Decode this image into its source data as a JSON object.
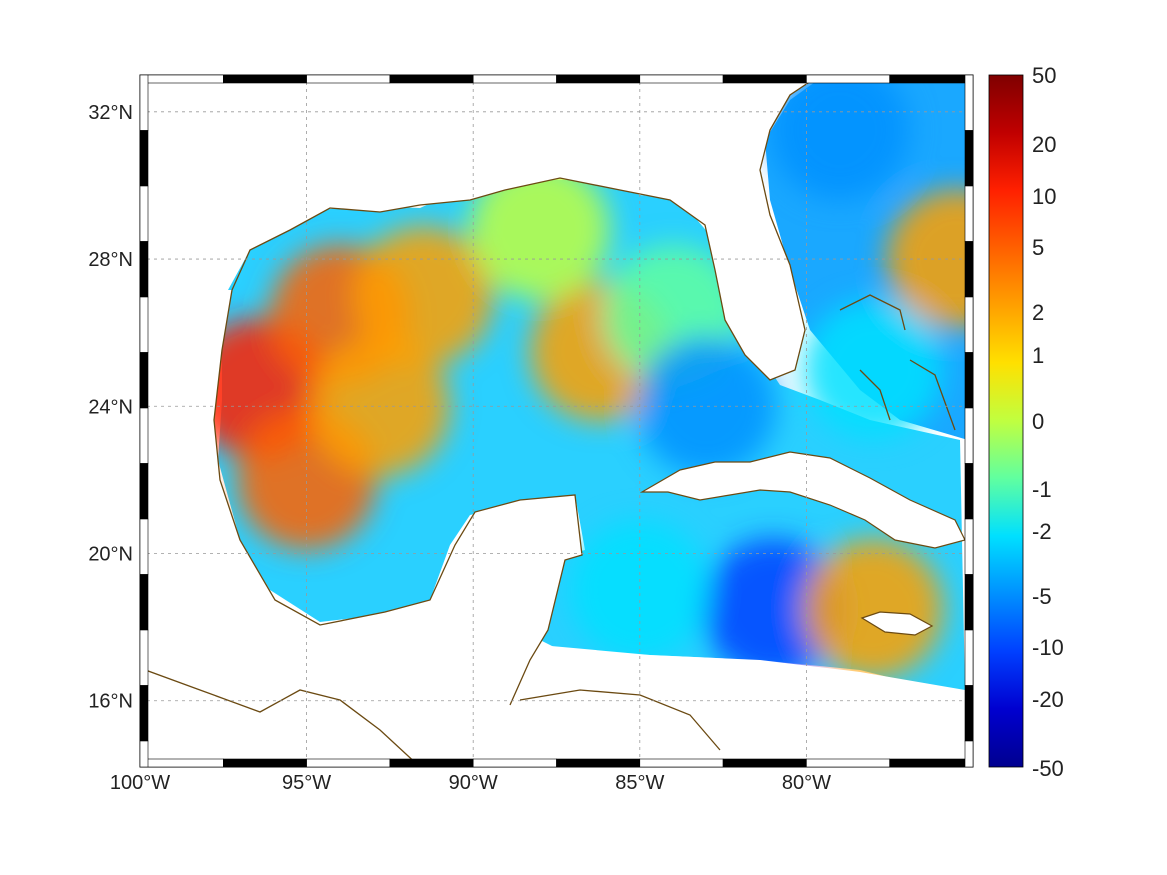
{
  "map": {
    "lon_range": [
      -100,
      -75
    ],
    "lat_range": [
      14.2,
      33.0
    ],
    "lon_ticks": [
      {
        "value": -100,
        "label": "100°W"
      },
      {
        "value": -95,
        "label": "95°W"
      },
      {
        "value": -90,
        "label": "90°W"
      },
      {
        "value": -85,
        "label": "85°W"
      },
      {
        "value": -80,
        "label": "80°W"
      }
    ],
    "lat_ticks": [
      {
        "value": 16,
        "label": "16°N"
      },
      {
        "value": 20,
        "label": "20°N"
      },
      {
        "value": 24,
        "label": "24°N"
      },
      {
        "value": 28,
        "label": "28°N"
      },
      {
        "value": 32,
        "label": "32°N"
      }
    ],
    "grid": true,
    "coastline_color": "#6b4a12",
    "land_color": "#ffffff"
  },
  "colorbar": {
    "ticks": [
      "50",
      "20",
      "10",
      "5",
      "2",
      "1",
      "0",
      "-1",
      "-2",
      "-5",
      "-10",
      "-20",
      "-50"
    ],
    "colors": [
      "#7f0000",
      "#c00000",
      "#ff2000",
      "#ff6000",
      "#ffa000",
      "#ffe000",
      "#c0ff40",
      "#60ffa0",
      "#00e0ff",
      "#0090ff",
      "#0040ff",
      "#0000d0",
      "#00008f"
    ]
  },
  "field_blobs": [
    {
      "lon": -96.5,
      "lat": 24.5,
      "value": 8
    },
    {
      "lon": -95.0,
      "lat": 22.0,
      "value": 7
    },
    {
      "lon": -94.0,
      "lat": 26.5,
      "value": 6
    },
    {
      "lon": -92.8,
      "lat": 24.0,
      "value": 3
    },
    {
      "lon": -91.5,
      "lat": 27.0,
      "value": 2
    },
    {
      "lon": -86.2,
      "lat": 25.5,
      "value": 2
    },
    {
      "lon": -88.0,
      "lat": 28.8,
      "value": 0
    },
    {
      "lon": -84.0,
      "lat": 26.5,
      "value": -1.5
    },
    {
      "lon": -83.0,
      "lat": 24.0,
      "value": -6
    },
    {
      "lon": -81.0,
      "lat": 18.5,
      "value": -8
    },
    {
      "lon": -85.0,
      "lat": 19.0,
      "value": -3
    },
    {
      "lon": -78.0,
      "lat": 18.5,
      "value": 1.5
    },
    {
      "lon": -75.5,
      "lat": 28.0,
      "value": 3
    },
    {
      "lon": -79.0,
      "lat": 31.5,
      "value": -6
    },
    {
      "lon": -78.0,
      "lat": 25.0,
      "value": -3
    }
  ]
}
